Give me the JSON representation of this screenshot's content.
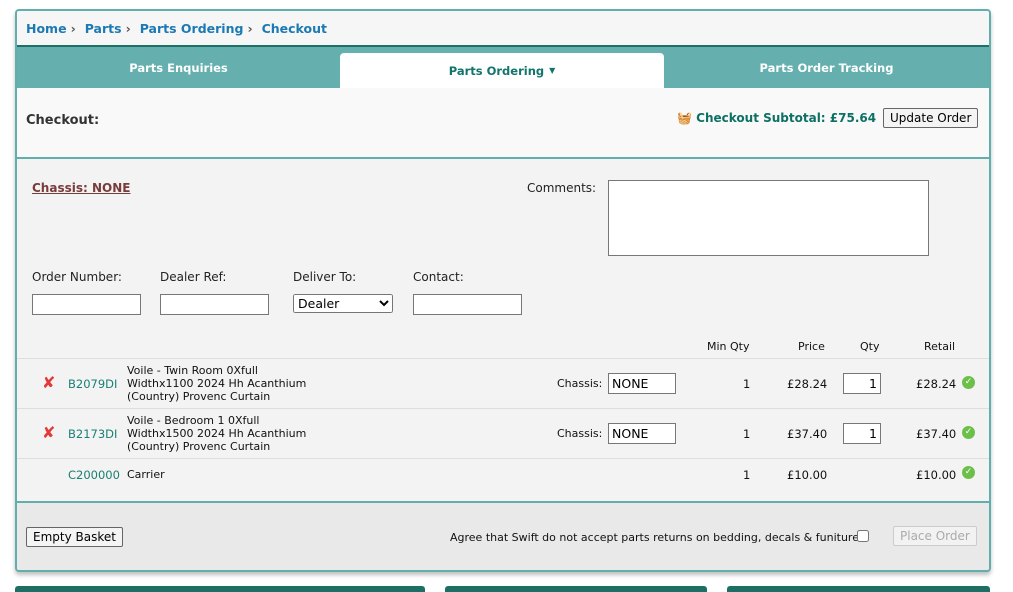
{
  "breadcrumb": [
    "Home",
    "Parts",
    "Parts Ordering",
    "Checkout"
  ],
  "tabs": [
    {
      "label": "Parts Enquiries"
    },
    {
      "label": "Parts Ordering",
      "active": true
    },
    {
      "label": "Parts Order Tracking"
    }
  ],
  "checkout": {
    "title": "Checkout:",
    "subtotal": "Checkout Subtotal: £75.64",
    "update_label": "Update Order"
  },
  "form": {
    "chassis": "Chassis: NONE",
    "comments_label": "Comments:",
    "comments_value": "",
    "order_number_label": "Order Number:",
    "order_number_value": "",
    "dealer_ref_label": "Dealer Ref:",
    "dealer_ref_value": "",
    "deliver_to_label": "Deliver To:",
    "deliver_to_value": "Dealer",
    "contact_label": "Contact:",
    "contact_value": ""
  },
  "table": {
    "headers": {
      "min_qty": "Min Qty",
      "price": "Price",
      "qty": "Qty",
      "retail": "Retail"
    },
    "chassis_label": "Chassis:",
    "rows": [
      {
        "code": "B2079DI",
        "desc": [
          "Voile - Twin Room 0Xfull",
          "Widthx1100 2024 Hh Acanthium",
          "(Country) Provenc Curtain"
        ],
        "chassis": "NONE",
        "min_qty": "1",
        "price": "£28.24",
        "qty": "1",
        "retail": "£28.24",
        "removable": true
      },
      {
        "code": "B2173DI",
        "desc": [
          "Voile - Bedroom 1 0Xfull",
          "Widthx1500 2024 Hh Acanthium",
          "(Country) Provenc Curtain"
        ],
        "chassis": "NONE",
        "min_qty": "1",
        "price": "£37.40",
        "qty": "1",
        "retail": "£37.40",
        "removable": true
      },
      {
        "code": "C200000",
        "desc": [
          "Carrier"
        ],
        "min_qty": "1",
        "price": "£10.00",
        "retail": "£10.00",
        "removable": false
      }
    ]
  },
  "footer": {
    "empty_label": "Empty Basket",
    "agree_text": "Agree that Swift do not accept parts returns on bedding, decals & funiture:",
    "place_label": "Place Order"
  },
  "colors": {
    "teal": "#65afaf",
    "link": "#1b7ab3",
    "dark_teal": "#1d6f64"
  }
}
